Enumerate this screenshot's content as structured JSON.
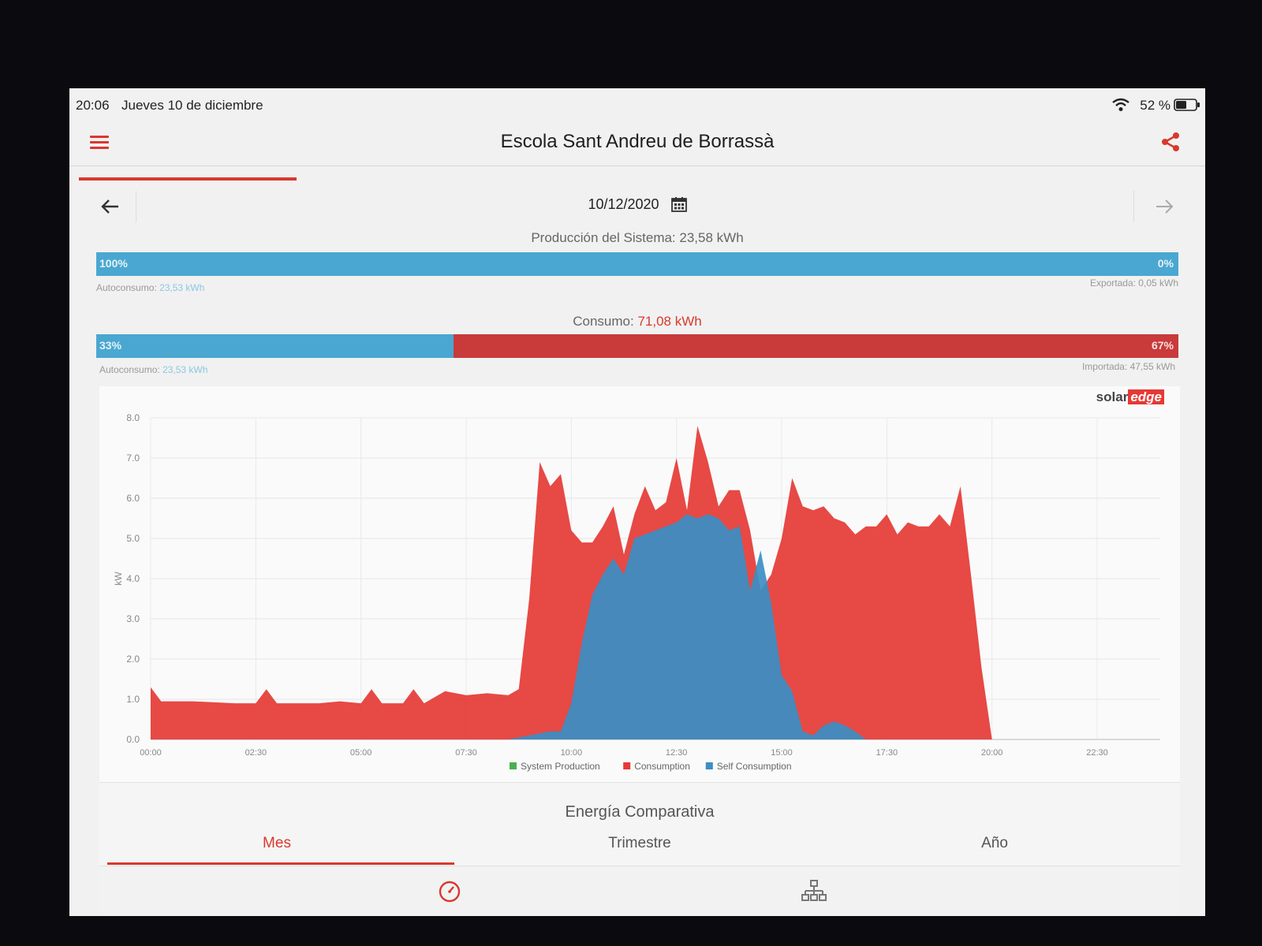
{
  "status": {
    "time": "20:06",
    "date": "Jueves 10 de diciembre",
    "battery": "52 %"
  },
  "header": {
    "title": "Escola Sant Andreu de Borrassà"
  },
  "date_nav": {
    "date": "10/12/2020"
  },
  "production": {
    "title": "Producción del Sistema: 23,58 kWh",
    "self_pct": 100,
    "self_label": "100%",
    "export_label": "0%",
    "self_text": "Autoconsumo:",
    "self_value": "23,53 kWh",
    "export_text": "Exportada: 0,05 kWh"
  },
  "consumption": {
    "title_prefix": "Consumo:",
    "title_value": "71,08 kWh",
    "self_pct": 33,
    "self_label": "33%",
    "import_label": "67%",
    "self_text": "Autoconsumo:",
    "self_value": "23,53 kWh",
    "import_text": "Importada: 47,55 kWh"
  },
  "brand": {
    "solar": "solar",
    "edge": "edge"
  },
  "colors": {
    "accent": "#d9382e",
    "production": "#4caf50",
    "consumption": "#e53935",
    "self_consumption": "#3a8fc4"
  },
  "chart_data": {
    "type": "area",
    "ylabel": "kW",
    "ylim": [
      0,
      8
    ],
    "yticks": [
      "0.0",
      "1.0",
      "2.0",
      "3.0",
      "4.0",
      "5.0",
      "6.0",
      "7.0",
      "8.0"
    ],
    "xticks": [
      "00:00",
      "02:30",
      "05:00",
      "07:30",
      "10:00",
      "12:30",
      "15:00",
      "17:30",
      "20:00",
      "22:30"
    ],
    "series": [
      {
        "name": "Consumption",
        "points": [
          [
            0,
            1.3
          ],
          [
            0.25,
            0.95
          ],
          [
            1,
            0.95
          ],
          [
            2,
            0.9
          ],
          [
            2.5,
            0.9
          ],
          [
            2.75,
            1.25
          ],
          [
            3,
            0.9
          ],
          [
            4,
            0.9
          ],
          [
            4.5,
            0.95
          ],
          [
            5,
            0.9
          ],
          [
            5.25,
            1.25
          ],
          [
            5.5,
            0.9
          ],
          [
            6,
            0.9
          ],
          [
            6.25,
            1.25
          ],
          [
            6.5,
            0.9
          ],
          [
            7,
            1.2
          ],
          [
            7.5,
            1.1
          ],
          [
            8,
            1.15
          ],
          [
            8.5,
            1.1
          ],
          [
            8.75,
            1.25
          ],
          [
            9.0,
            3.5
          ],
          [
            9.25,
            6.9
          ],
          [
            9.5,
            6.3
          ],
          [
            9.75,
            6.6
          ],
          [
            10.0,
            5.2
          ],
          [
            10.25,
            4.9
          ],
          [
            10.5,
            4.9
          ],
          [
            10.75,
            5.3
          ],
          [
            11,
            5.8
          ],
          [
            11.25,
            4.6
          ],
          [
            11.5,
            5.6
          ],
          [
            11.75,
            6.3
          ],
          [
            12.0,
            5.7
          ],
          [
            12.25,
            5.9
          ],
          [
            12.5,
            7.0
          ],
          [
            12.75,
            5.7
          ],
          [
            13.0,
            7.8
          ],
          [
            13.25,
            6.9
          ],
          [
            13.5,
            5.8
          ],
          [
            13.75,
            6.2
          ],
          [
            14.0,
            6.2
          ],
          [
            14.25,
            5.2
          ],
          [
            14.5,
            3.7
          ],
          [
            14.75,
            4.1
          ],
          [
            15,
            5.0
          ],
          [
            15.25,
            6.5
          ],
          [
            15.5,
            5.8
          ],
          [
            15.75,
            5.7
          ],
          [
            16,
            5.8
          ],
          [
            16.25,
            5.5
          ],
          [
            16.5,
            5.4
          ],
          [
            16.75,
            5.1
          ],
          [
            17,
            5.3
          ],
          [
            17.25,
            5.3
          ],
          [
            17.5,
            5.6
          ],
          [
            17.75,
            5.1
          ],
          [
            18,
            5.4
          ],
          [
            18.25,
            5.3
          ],
          [
            18.5,
            5.3
          ],
          [
            18.75,
            5.6
          ],
          [
            19.0,
            5.3
          ],
          [
            19.25,
            6.3
          ],
          [
            19.5,
            4.1
          ],
          [
            19.75,
            1.8
          ],
          [
            20,
            0.0
          ],
          [
            24,
            0.0
          ]
        ]
      },
      {
        "name": "Self Consumption",
        "points": [
          [
            0,
            0
          ],
          [
            8.5,
            0
          ],
          [
            9.0,
            0.1
          ],
          [
            9.5,
            0.2
          ],
          [
            9.75,
            0.2
          ],
          [
            10.0,
            0.9
          ],
          [
            10.25,
            2.4
          ],
          [
            10.5,
            3.6
          ],
          [
            10.75,
            4.1
          ],
          [
            11,
            4.5
          ],
          [
            11.25,
            4.1
          ],
          [
            11.5,
            5.0
          ],
          [
            11.75,
            5.1
          ],
          [
            12.0,
            5.2
          ],
          [
            12.25,
            5.3
          ],
          [
            12.5,
            5.4
          ],
          [
            12.75,
            5.6
          ],
          [
            13.0,
            5.5
          ],
          [
            13.25,
            5.6
          ],
          [
            13.5,
            5.5
          ],
          [
            13.75,
            5.2
          ],
          [
            14.0,
            5.3
          ],
          [
            14.25,
            3.7
          ],
          [
            14.5,
            4.7
          ],
          [
            14.75,
            3.4
          ],
          [
            15,
            1.6
          ],
          [
            15.25,
            1.2
          ],
          [
            15.5,
            0.2
          ],
          [
            15.75,
            0.1
          ],
          [
            16,
            0.35
          ],
          [
            16.25,
            0.45
          ],
          [
            16.5,
            0.35
          ],
          [
            16.75,
            0.2
          ],
          [
            17,
            0.0
          ],
          [
            24,
            0.0
          ]
        ]
      },
      {
        "name": "System Production",
        "points": []
      }
    ],
    "legend": [
      "System Production",
      "Consumption",
      "Self Consumption"
    ],
    "legend_position": "bottom-center",
    "grid": true
  },
  "compare": {
    "title": "Energía Comparativa",
    "tabs": [
      "Mes",
      "Trimestre",
      "Año"
    ],
    "active": 0
  }
}
